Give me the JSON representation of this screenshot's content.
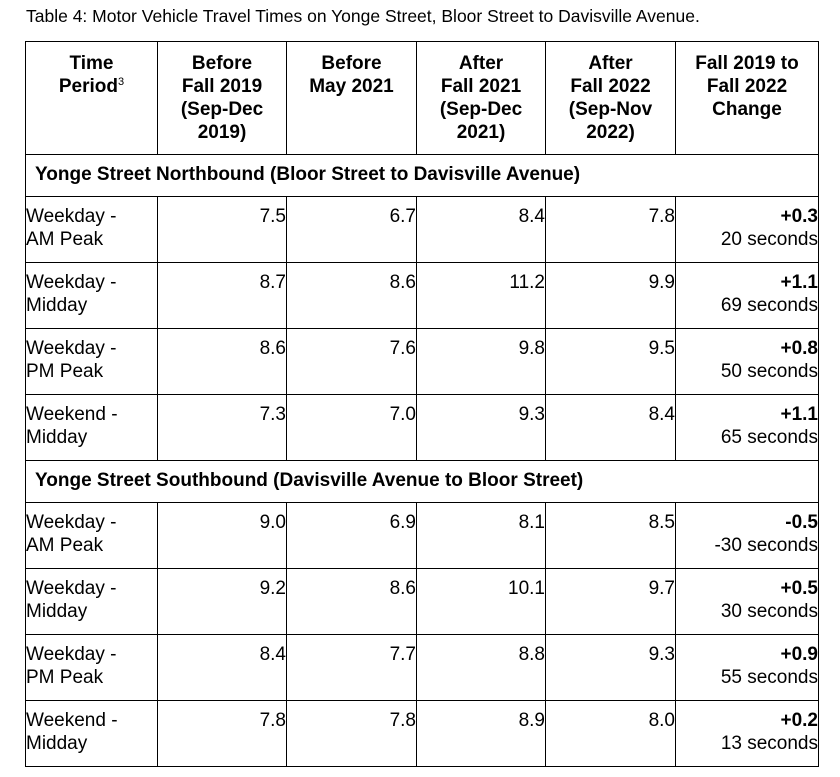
{
  "caption": "Table 4: Motor Vehicle Travel Times on Yonge Street, Bloor Street to Davisville Avenue.",
  "headers": {
    "time_period": [
      "Time",
      "Period"
    ],
    "time_period_footnote": "3",
    "before_fall_2019": [
      "Before",
      "Fall 2019",
      "(Sep-Dec",
      "2019)"
    ],
    "before_may_2021": [
      "Before",
      "May 2021"
    ],
    "after_fall_2021": [
      "After",
      "Fall 2021",
      "(Sep-Dec",
      "2021)"
    ],
    "after_fall_2022": [
      "After",
      "Fall 2022",
      "(Sep-Nov",
      "2022)"
    ],
    "change": [
      "Fall 2019 to",
      "Fall 2022",
      "Change"
    ]
  },
  "sections": [
    {
      "title": "Yonge Street Northbound (Bloor Street to Davisville Avenue)",
      "rows": [
        {
          "period": [
            "Weekday -",
            "AM Peak"
          ],
          "before_fall_2019": "7.5",
          "before_may_2021": "6.7",
          "after_fall_2021": "8.4",
          "after_fall_2022": "7.8",
          "change": "+0.3",
          "change_seconds": "20 seconds"
        },
        {
          "period": [
            "Weekday -",
            "Midday"
          ],
          "before_fall_2019": "8.7",
          "before_may_2021": "8.6",
          "after_fall_2021": "11.2",
          "after_fall_2022": "9.9",
          "change": "+1.1",
          "change_seconds": "69 seconds"
        },
        {
          "period": [
            "Weekday -",
            "PM Peak"
          ],
          "before_fall_2019": "8.6",
          "before_may_2021": "7.6",
          "after_fall_2021": "9.8",
          "after_fall_2022": "9.5",
          "change": "+0.8",
          "change_seconds": "50 seconds"
        },
        {
          "period": [
            "Weekend -",
            "Midday"
          ],
          "before_fall_2019": "7.3",
          "before_may_2021": "7.0",
          "after_fall_2021": "9.3",
          "after_fall_2022": "8.4",
          "change": "+1.1",
          "change_seconds": "65 seconds"
        }
      ]
    },
    {
      "title": "Yonge Street Southbound (Davisville Avenue to Bloor Street)",
      "rows": [
        {
          "period": [
            "Weekday -",
            "AM Peak"
          ],
          "before_fall_2019": "9.0",
          "before_may_2021": "6.9",
          "after_fall_2021": "8.1",
          "after_fall_2022": "8.5",
          "change": "-0.5",
          "change_seconds": "-30 seconds"
        },
        {
          "period": [
            "Weekday -",
            "Midday"
          ],
          "before_fall_2019": "9.2",
          "before_may_2021": "8.6",
          "after_fall_2021": "10.1",
          "after_fall_2022": "9.7",
          "change": "+0.5",
          "change_seconds": "30 seconds"
        },
        {
          "period": [
            "Weekday -",
            "PM Peak"
          ],
          "before_fall_2019": "8.4",
          "before_may_2021": "7.7",
          "after_fall_2021": "8.8",
          "after_fall_2022": "9.3",
          "change": "+0.9",
          "change_seconds": "55 seconds"
        },
        {
          "period": [
            "Weekend -",
            "Midday"
          ],
          "before_fall_2019": "7.8",
          "before_may_2021": "7.8",
          "after_fall_2021": "8.9",
          "after_fall_2022": "8.0",
          "change": "+0.2",
          "change_seconds": "13 seconds"
        }
      ]
    }
  ]
}
